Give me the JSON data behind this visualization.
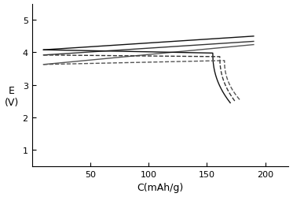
{
  "title": "",
  "xlabel": "C(mAh/g)",
  "ylabel": "E\n(V)",
  "xlim": [
    0,
    220
  ],
  "ylim": [
    0.5,
    5.5
  ],
  "xticks": [
    50,
    100,
    150,
    200
  ],
  "yticks": [
    1,
    2,
    3,
    4,
    5
  ],
  "figsize": [
    3.73,
    2.51
  ],
  "dpi": 100,
  "charge_curves": [
    {
      "x_start": 10,
      "y_start": 4.08,
      "x_end": 190,
      "y_end": 4.5,
      "color": "#111111",
      "lw": 1.0
    },
    {
      "x_start": 10,
      "y_start": 3.92,
      "x_end": 190,
      "y_end": 4.34,
      "color": "#333333",
      "lw": 1.0
    },
    {
      "x_start": 10,
      "y_start": 3.63,
      "x_end": 190,
      "y_end": 4.24,
      "color": "#555555",
      "lw": 1.0
    }
  ],
  "discharge_curves": [
    {
      "x_start": 10,
      "y_start": 4.08,
      "x_flat_end": 155,
      "y_flat_end": 3.98,
      "x_end": 170,
      "y_end": 2.45,
      "style": "solid",
      "color": "#111111",
      "lw": 1.0
    },
    {
      "x_start": 10,
      "y_start": 3.92,
      "x_flat_end": 161,
      "y_flat_end": 3.87,
      "x_end": 174,
      "y_end": 2.5,
      "style": "dashed",
      "color": "#333333",
      "lw": 1.0
    },
    {
      "x_start": 10,
      "y_start": 3.63,
      "x_flat_end": 165,
      "y_flat_end": 3.75,
      "x_end": 178,
      "y_end": 2.55,
      "style": "dashed",
      "color": "#555555",
      "lw": 1.0
    }
  ]
}
